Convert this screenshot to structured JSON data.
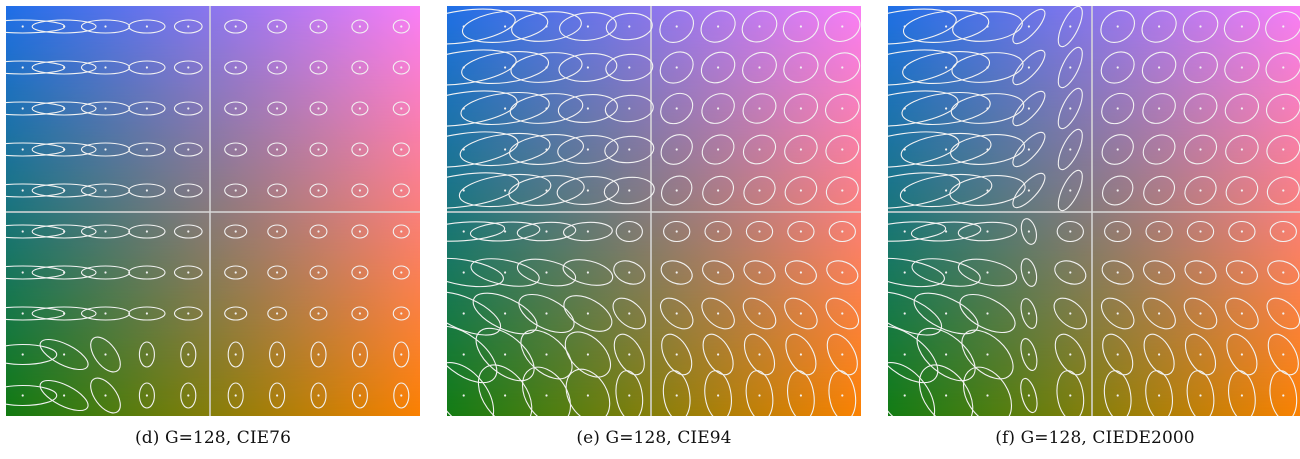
{
  "figure": {
    "grid": {
      "rows": 10,
      "cols": 10,
      "divider_after_col": 5,
      "divider_after_row": 5
    },
    "ellipse_style": {
      "stroke": "#f2f2f2",
      "divider": "#d9d9d9"
    },
    "panels": [
      {
        "id": "d",
        "caption": "(d) G=128, CIE76",
        "gradient": {
          "top_left": "#1f6fe8",
          "top_right": "#f97ef7",
          "bottom_left": "#127a10",
          "bottom_right": "#fb8100"
        },
        "metric": "cie76"
      },
      {
        "id": "e",
        "caption": "(e) G=128, CIE94",
        "gradient": {
          "top_left": "#1f70e6",
          "top_right": "#f97ef7",
          "bottom_left": "#137c12",
          "bottom_right": "#fb8200"
        },
        "metric": "cie94"
      },
      {
        "id": "f",
        "caption": "(f) G=128, CIEDE2000",
        "gradient": {
          "top_left": "#1f70e6",
          "top_right": "#f97ef7",
          "bottom_left": "#137c12",
          "bottom_right": "#fb8200"
        },
        "metric": "ciede2000"
      }
    ]
  }
}
